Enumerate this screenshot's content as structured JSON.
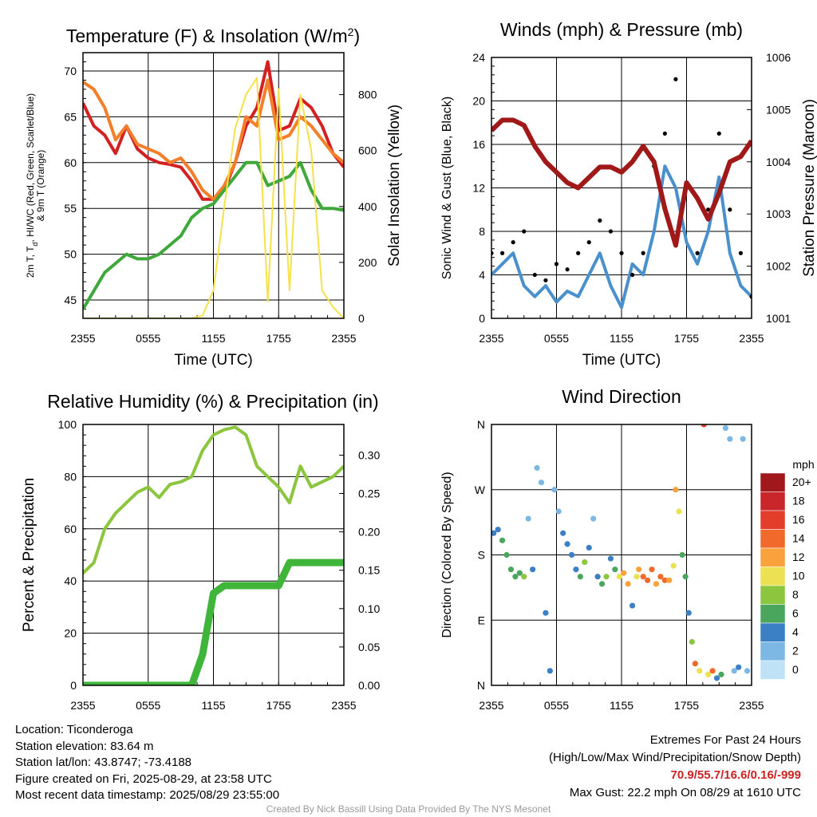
{
  "colors": {
    "temp": "#d42020",
    "dewpoint": "#3ea83a",
    "windchill": "#3b7fc4",
    "temp9m": "#f47f2a",
    "insolation": "#f5e14a",
    "wind": "#4a90cd",
    "gust": "#000000",
    "pressure": "#a01818",
    "rh": "#8cc63f",
    "precip": "#3fb53a"
  },
  "chart_data": [
    {
      "type": "line",
      "title": "Temperature (F) & Insolation (W/m²)",
      "xlabel": "Time (UTC)",
      "ylabel": "2m T, Td, HI/WC (Red, Green, Scarlet/Blue) & 9m T (Orange)",
      "ylabel_line1": "2m T, T",
      "ylabel_sub": "d",
      "ylabel_line1b": ", HI/WC (Red, Green, Scarlet/Blue)",
      "ylabel_line2": "& 9m T (Orange)",
      "y2label": "Solar Insolation (Yellow)",
      "xticks": [
        "2355",
        "0555",
        "1155",
        "1755",
        "2355"
      ],
      "x": [
        0,
        1,
        2,
        3,
        4,
        5,
        6,
        7,
        8,
        9,
        10,
        11,
        12,
        13,
        14,
        15,
        16,
        17,
        18,
        19,
        20,
        21,
        22,
        23,
        24
      ],
      "xlim": [
        0,
        24
      ],
      "ylim": [
        43,
        72
      ],
      "yticks": [
        45,
        50,
        55,
        60,
        65,
        70
      ],
      "y2lim": [
        0,
        950
      ],
      "y2ticks": [
        0,
        200,
        400,
        600,
        800
      ],
      "series": [
        {
          "key": "temp",
          "axis": "left",
          "values": [
            66.5,
            64,
            63,
            61,
            64,
            61.5,
            60.5,
            60,
            59.8,
            59.5,
            58,
            56,
            56,
            57,
            60,
            64,
            66,
            71,
            63.5,
            64,
            67,
            66,
            64,
            61,
            59.5
          ]
        },
        {
          "key": "temp9m",
          "axis": "left",
          "values": [
            68.8,
            68,
            66,
            62.5,
            64,
            62,
            61.5,
            61,
            60,
            60.5,
            59,
            57,
            56,
            57.5,
            60,
            65,
            64,
            69,
            62.5,
            63,
            65,
            64,
            62.5,
            61,
            60
          ]
        },
        {
          "key": "dewpoint",
          "axis": "left",
          "values": [
            44,
            46,
            48,
            49,
            50,
            49.5,
            49.5,
            50,
            51,
            52,
            54,
            55,
            55.5,
            57,
            58.5,
            60,
            60,
            57.5,
            58,
            58.5,
            60,
            57,
            55,
            55,
            54.8
          ]
        },
        {
          "key": "insolation",
          "axis": "right",
          "values": [
            0,
            0,
            0,
            0,
            0,
            0,
            0,
            0,
            0,
            0,
            0,
            10,
            100,
            400,
            680,
            800,
            860,
            60,
            820,
            100,
            800,
            600,
            100,
            40,
            0
          ]
        }
      ]
    },
    {
      "type": "line",
      "title": "Winds (mph) & Pressure (mb)",
      "xlabel": "Time (UTC)",
      "ylabel": "Sonic Wind & Gust (Blue, Black)",
      "y2label": "Station Pressure (Maroon)",
      "xticks": [
        "2355",
        "0555",
        "1155",
        "1755",
        "2355"
      ],
      "x": [
        0,
        1,
        2,
        3,
        4,
        5,
        6,
        7,
        8,
        9,
        10,
        11,
        12,
        13,
        14,
        15,
        16,
        17,
        18,
        19,
        20,
        21,
        22,
        23,
        24
      ],
      "xlim": [
        0,
        24
      ],
      "ylim": [
        0,
        24
      ],
      "yticks": [
        0,
        4,
        8,
        12,
        16,
        20,
        24
      ],
      "y2lim": [
        1001,
        1006
      ],
      "y2ticks": [
        1001,
        1002,
        1003,
        1004,
        1005,
        1006
      ],
      "series": [
        {
          "key": "wind",
          "axis": "left",
          "name": "Sonic Wind",
          "values": [
            4,
            5,
            6,
            3,
            2,
            3,
            1.5,
            2.5,
            2,
            4,
            6,
            3,
            1,
            5,
            4,
            8,
            14,
            12,
            7,
            5,
            8,
            13,
            6,
            3,
            2
          ]
        },
        {
          "key": "gust",
          "axis": "left",
          "name": "Gust",
          "values": [
            6,
            6,
            7,
            8,
            4,
            3.5,
            5,
            4.5,
            6,
            7,
            9,
            8,
            6,
            4,
            6,
            14,
            17,
            22,
            12,
            6,
            10,
            17,
            10,
            6,
            2
          ]
        },
        {
          "key": "pressure",
          "axis": "right",
          "name": "Station Pressure",
          "values": [
            1004.6,
            1004.8,
            1004.8,
            1004.7,
            1004.3,
            1004,
            1003.8,
            1003.6,
            1003.5,
            1003.7,
            1003.9,
            1003.9,
            1003.8,
            1004,
            1004.3,
            1004,
            1003.1,
            1002.4,
            1003.6,
            1003.3,
            1002.9,
            1003.4,
            1004,
            1004.1,
            1004.4
          ]
        }
      ]
    },
    {
      "type": "line",
      "title": "Relative Humidity (%) & Precipitation (in)",
      "xlabel": "",
      "ylabel": "Percent & Precipitation",
      "xticks": [
        "2355",
        "0555",
        "1155",
        "1755",
        "2355"
      ],
      "x": [
        0,
        1,
        2,
        3,
        4,
        5,
        6,
        7,
        8,
        9,
        10,
        11,
        12,
        13,
        14,
        15,
        16,
        17,
        18,
        19,
        20,
        21,
        22,
        23,
        24
      ],
      "xlim": [
        0,
        24
      ],
      "ylim": [
        0,
        100
      ],
      "yticks": [
        0,
        20,
        40,
        60,
        80,
        100
      ],
      "y2lim": [
        0,
        0.34
      ],
      "y2ticks": [
        0.0,
        0.05,
        0.1,
        0.15,
        0.2,
        0.25,
        0.3
      ],
      "y2ticklabels": [
        "0.00",
        "0.05",
        "0.10",
        "0.15",
        "0.20",
        "0.25",
        "0.30"
      ],
      "series": [
        {
          "key": "rh",
          "axis": "left",
          "name": "Relative Humidity",
          "values": [
            43,
            47,
            60,
            66,
            70,
            74,
            76,
            72,
            77,
            78,
            80,
            90,
            96,
            98,
            99,
            96,
            84,
            80,
            76,
            70,
            84,
            76,
            78,
            80,
            84
          ]
        },
        {
          "key": "precip",
          "axis": "right",
          "name": "Precipitation",
          "values": [
            0,
            0,
            0,
            0,
            0,
            0,
            0,
            0,
            0,
            0,
            0,
            0.04,
            0.12,
            0.13,
            0.13,
            0.13,
            0.13,
            0.13,
            0.13,
            0.16,
            0.16,
            0.16,
            0.16,
            0.16,
            0.16
          ]
        }
      ]
    },
    {
      "type": "scatter",
      "title": "Wind Direction",
      "ylabel": "Direction (Colored By Speed)",
      "xticks": [
        "2355",
        "0555",
        "1155",
        "1755",
        "2355"
      ],
      "xlim": [
        0,
        24
      ],
      "ylim": [
        0,
        360
      ],
      "yticks": [
        0,
        90,
        180,
        270,
        360
      ],
      "yticklabels": [
        "N",
        "E",
        "S",
        "W",
        "N"
      ],
      "x": [
        0.2,
        0.6,
        1.0,
        1.4,
        1.8,
        2.2,
        2.6,
        3.0,
        3.4,
        3.8,
        4.2,
        4.6,
        5.0,
        5.4,
        5.8,
        6.2,
        6.6,
        7.0,
        7.4,
        7.8,
        8.2,
        8.6,
        9.0,
        9.4,
        9.8,
        10.2,
        10.6,
        11.0,
        11.4,
        11.8,
        12.2,
        12.6,
        13.0,
        13.4,
        13.6,
        14.0,
        14.4,
        14.8,
        15.2,
        15.6,
        16.0,
        16.4,
        16.8,
        17.0,
        17.3,
        17.6,
        17.9,
        18.2,
        18.5,
        18.8,
        19.2,
        19.6,
        20.0,
        20.4,
        20.8,
        21.2,
        21.6,
        22.0,
        22.4,
        22.8,
        23.2,
        23.6
      ],
      "y": [
        210,
        215,
        200,
        180,
        160,
        150,
        155,
        150,
        230,
        160,
        300,
        280,
        100,
        20,
        270,
        240,
        210,
        195,
        180,
        160,
        150,
        170,
        190,
        230,
        150,
        140,
        150,
        175,
        160,
        150,
        155,
        140,
        110,
        150,
        160,
        150,
        145,
        160,
        140,
        150,
        145,
        145,
        165,
        270,
        240,
        180,
        150,
        100,
        60,
        30,
        20,
        360,
        15,
        20,
        10,
        15,
        355,
        340,
        20,
        25,
        340,
        20
      ],
      "speed": [
        4,
        4,
        5,
        5,
        6,
        6,
        6,
        7,
        2,
        3,
        2,
        1,
        3,
        3,
        2,
        2,
        3,
        3,
        4,
        3,
        5,
        7,
        3,
        2,
        4,
        6,
        7,
        3,
        5,
        9,
        11,
        12,
        4,
        9,
        11,
        13,
        14,
        13,
        12,
        14,
        13,
        12,
        10,
        12,
        9,
        6,
        5,
        4,
        8,
        13,
        9,
        15,
        10,
        14,
        3,
        6,
        2,
        2,
        2,
        3,
        2,
        1
      ],
      "legend_title": "mph",
      "legend_levels": [
        "20+",
        "18",
        "16",
        "14",
        "12",
        "10",
        "8",
        "6",
        "4",
        "2",
        "0"
      ],
      "legend_colors": [
        "#a0171c",
        "#c8262a",
        "#e33d2b",
        "#f16a2b",
        "#f9a23d",
        "#ece152",
        "#8cc63f",
        "#4ba65d",
        "#3b7fc4",
        "#7db8e4",
        "#c0e2f6"
      ]
    }
  ],
  "footer": {
    "location": "Location: Ticonderoga",
    "elevation": "Station elevation: 83.64 m",
    "latlon": "Station lat/lon: 43.8747; -73.4188",
    "created": "Figure created on Fri, 2025-08-29, at 23:58 UTC",
    "recent": "Most recent data timestamp: 2025/08/29 23:55:00",
    "extremes_title": "Extremes For Past 24 Hours",
    "extremes_sub": "(High/Low/Max Wind/Precipitation/Snow Depth)",
    "extremes_values": "70.9/55.7/16.6/0.16/-999",
    "max_gust": "Max Gust: 22.2 mph On 08/29 at 1610 UTC",
    "credit": "Created By Nick Bassill Using Data Provided By The NYS Mesonet"
  }
}
